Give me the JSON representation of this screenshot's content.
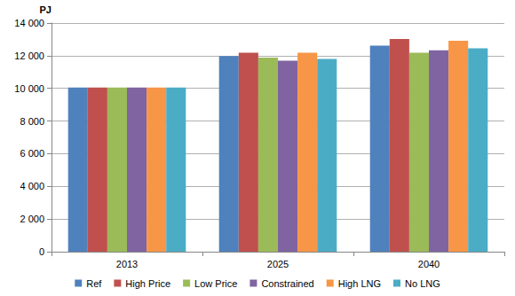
{
  "chart_data": {
    "type": "bar",
    "ylabel": "PJ",
    "categories": [
      "2013",
      "2025",
      "2040"
    ],
    "series": [
      {
        "name": "Ref",
        "color": "#4f81bd",
        "values": [
          10050,
          11980,
          12620
        ]
      },
      {
        "name": "High Price",
        "color": "#c0504d",
        "values": [
          10050,
          12180,
          13030
        ]
      },
      {
        "name": "Low Price",
        "color": "#9bbb59",
        "values": [
          10050,
          11880,
          12180
        ]
      },
      {
        "name": "Constrained",
        "color": "#8064a2",
        "values": [
          10050,
          11700,
          12330
        ]
      },
      {
        "name": "High LNG",
        "color": "#f79646",
        "values": [
          10050,
          12180,
          12920
        ]
      },
      {
        "name": "No LNG",
        "color": "#4bacc6",
        "values": [
          10050,
          11800,
          12450
        ]
      }
    ],
    "ylim": [
      0,
      14000
    ],
    "yticks": [
      0,
      {
        "value": 2000,
        "label": "2 000"
      },
      {
        "value": 4000,
        "label": "4 000"
      },
      {
        "value": 6000,
        "label": "6 000"
      },
      {
        "value": 8000,
        "label": "8 000"
      },
      {
        "value": 10000,
        "label": "10 000"
      },
      {
        "value": 12000,
        "label": "12 000"
      },
      {
        "value": 14000,
        "label": "14 000"
      }
    ],
    "grid": true,
    "legend": "bottom"
  }
}
